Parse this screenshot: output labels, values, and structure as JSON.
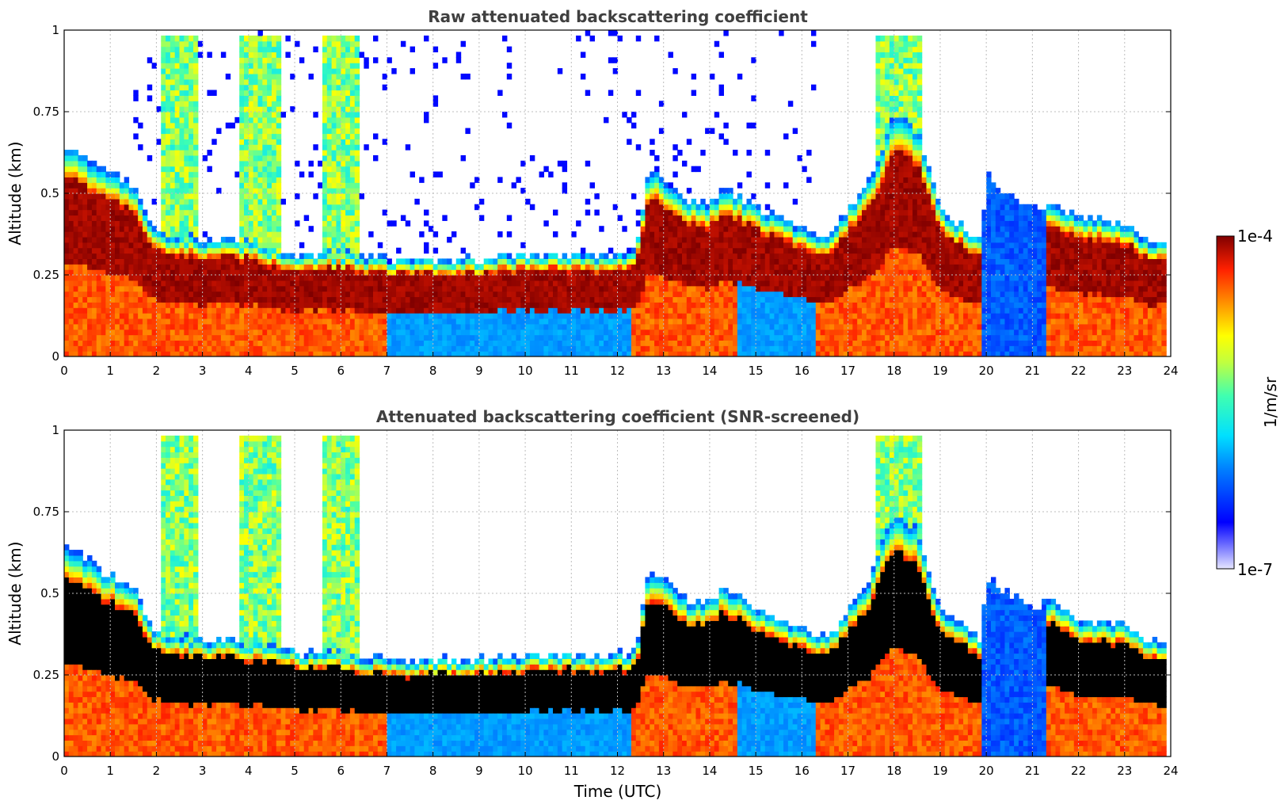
{
  "chart_data": [
    {
      "type": "heatmap",
      "title": "Raw attenuated backscattering coefficient",
      "xlabel": "",
      "ylabel": "Altitude (km)",
      "xlim": [
        0,
        24
      ],
      "ylim": [
        0,
        1
      ],
      "xticks": [
        "0",
        "1",
        "2",
        "3",
        "4",
        "5",
        "6",
        "7",
        "8",
        "9",
        "10",
        "11",
        "12",
        "13",
        "14",
        "15",
        "16",
        "17",
        "18",
        "19",
        "20",
        "21",
        "22",
        "23",
        "24"
      ],
      "yticks": [
        "0",
        "0.25",
        "0.5",
        "0.75",
        "1"
      ],
      "grid": true,
      "screened": false,
      "mixing_layer_top_km": [
        [
          0,
          0.66
        ],
        [
          0.5,
          0.6
        ],
        [
          1,
          0.56
        ],
        [
          1.5,
          0.52
        ],
        [
          2,
          0.38
        ],
        [
          3,
          0.36
        ],
        [
          4,
          0.35
        ],
        [
          4.7,
          0.33
        ],
        [
          5,
          0.32
        ],
        [
          6,
          0.32
        ],
        [
          6.8,
          0.3
        ],
        [
          7.5,
          0.29
        ],
        [
          9,
          0.3
        ],
        [
          10,
          0.31
        ],
        [
          11,
          0.31
        ],
        [
          12,
          0.31
        ],
        [
          12.4,
          0.32
        ],
        [
          12.7,
          0.58
        ],
        [
          13.5,
          0.48
        ],
        [
          14,
          0.47
        ],
        [
          14.3,
          0.52
        ],
        [
          15,
          0.46
        ],
        [
          15.5,
          0.42
        ],
        [
          16,
          0.4
        ],
        [
          16.5,
          0.36
        ],
        [
          17,
          0.45
        ],
        [
          17.5,
          0.55
        ],
        [
          18,
          0.75
        ],
        [
          18.5,
          0.7
        ],
        [
          19,
          0.45
        ],
        [
          19.5,
          0.4
        ],
        [
          19.9,
          0.36
        ],
        [
          20,
          0.55
        ],
        [
          21,
          0.45
        ],
        [
          21.5,
          0.48
        ],
        [
          22,
          0.42
        ],
        [
          22.5,
          0.42
        ],
        [
          23,
          0.4
        ],
        [
          23.8,
          0.34
        ]
      ],
      "color_scale": {
        "min": "1e-7",
        "max": "1e-4",
        "unit": "1/m/sr",
        "log": true
      }
    },
    {
      "type": "heatmap",
      "title": "Attenuated backscattering coefficient (SNR-screened)",
      "xlabel": "Time (UTC)",
      "ylabel": "Altitude (km)",
      "xlim": [
        0,
        24
      ],
      "ylim": [
        0,
        1
      ],
      "xticks": [
        "0",
        "1",
        "2",
        "3",
        "4",
        "5",
        "6",
        "7",
        "8",
        "9",
        "10",
        "11",
        "12",
        "13",
        "14",
        "15",
        "16",
        "17",
        "18",
        "19",
        "20",
        "21",
        "22",
        "23",
        "24"
      ],
      "yticks": [
        "0",
        "0.25",
        "0.5",
        "0.75",
        "1"
      ],
      "grid": true,
      "screened": true,
      "color_scale": {
        "min": "1e-7",
        "max": "1e-4",
        "unit": "1/m/sr",
        "log": true
      }
    }
  ],
  "colorbar": {
    "top_label": "1e-4",
    "bottom_label": "1e-7",
    "unit_label": "1/m/sr"
  }
}
